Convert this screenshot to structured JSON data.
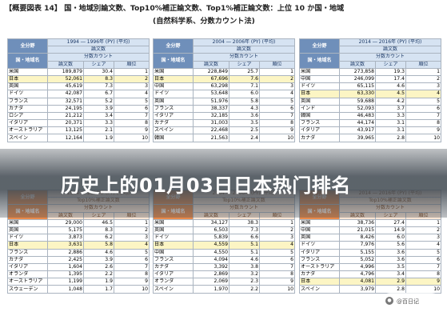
{
  "title": {
    "line1": "【概要図表 14】 国・地域別論文数、Top10%補正論文数、Top1%補正論文数：上位 10 か国・地域",
    "line2": "(自然科学系、分数カウント法)"
  },
  "banner": {
    "text": "历史上的01月03日日本热门排名"
  },
  "watermark": {
    "text": "@百日记",
    "icon": "circle-logo-icon"
  },
  "tables": [
    {
      "theme": "blue",
      "corner_top": "全分野",
      "corner_bottom": "国・地域名",
      "period": "1994 ― 1996年 (PY) (平均)",
      "metric": "論文数",
      "method": "分数カウント",
      "cols": [
        "論文数",
        "シェア",
        "順位"
      ],
      "rows": [
        {
          "name": "米国",
          "count": "189,879",
          "share": "30.4",
          "rank": "1"
        },
        {
          "name": "日本",
          "count": "52,061",
          "share": "8.3",
          "rank": "2",
          "jp": true
        },
        {
          "name": "英国",
          "count": "45,619",
          "share": "7.3",
          "rank": "3"
        },
        {
          "name": "ドイツ",
          "count": "42,087",
          "share": "6.7",
          "rank": "4"
        },
        {
          "name": "フランス",
          "count": "32,571",
          "share": "5.2",
          "rank": "5"
        },
        {
          "name": "カナダ",
          "count": "24,195",
          "share": "3.9",
          "rank": "6"
        },
        {
          "name": "ロシア",
          "count": "21,212",
          "share": "3.4",
          "rank": "7"
        },
        {
          "name": "イタリア",
          "count": "20,371",
          "share": "3.3",
          "rank": "8"
        },
        {
          "name": "オーストラリア",
          "count": "13,125",
          "share": "2.1",
          "rank": "9"
        },
        {
          "name": "スペイン",
          "count": "12,164",
          "share": "1.9",
          "rank": "10"
        }
      ]
    },
    {
      "theme": "blue",
      "corner_top": "全分野",
      "corner_bottom": "国・地域名",
      "period": "2004 ― 2006年 (PY) (平均)",
      "metric": "論文数",
      "method": "分数カウント",
      "cols": [
        "論文数",
        "シェア",
        "順位"
      ],
      "rows": [
        {
          "name": "米国",
          "count": "228,849",
          "share": "25.7",
          "rank": "1"
        },
        {
          "name": "日本",
          "count": "67,696",
          "share": "7.6",
          "rank": "2",
          "jp": true
        },
        {
          "name": "中国",
          "count": "63,298",
          "share": "7.1",
          "rank": "3"
        },
        {
          "name": "ドイツ",
          "count": "53,648",
          "share": "6.0",
          "rank": "4"
        },
        {
          "name": "英国",
          "count": "51,976",
          "share": "5.8",
          "rank": "5"
        },
        {
          "name": "フランス",
          "count": "38,337",
          "share": "4.3",
          "rank": "6"
        },
        {
          "name": "イタリア",
          "count": "32,185",
          "share": "3.6",
          "rank": "7"
        },
        {
          "name": "カナダ",
          "count": "31,003",
          "share": "3.5",
          "rank": "8"
        },
        {
          "name": "スペイン",
          "count": "22,468",
          "share": "2.5",
          "rank": "9"
        },
        {
          "name": "韓国",
          "count": "21,563",
          "share": "2.4",
          "rank": "10"
        }
      ]
    },
    {
      "theme": "blue",
      "corner_top": "全分野",
      "corner_bottom": "国・地域名",
      "period": "2014 ― 2016年 (PY) (平均)",
      "metric": "論文数",
      "method": "分数カウント",
      "cols": [
        "論文数",
        "シェア",
        "順位"
      ],
      "rows": [
        {
          "name": "米国",
          "count": "273,858",
          "share": "19.3",
          "rank": "1"
        },
        {
          "name": "中国",
          "count": "246,099",
          "share": "17.4",
          "rank": "2"
        },
        {
          "name": "ドイツ",
          "count": "65,115",
          "share": "4.6",
          "rank": "3"
        },
        {
          "name": "日本",
          "count": "63,330",
          "share": "4.5",
          "rank": "4",
          "jp": true
        },
        {
          "name": "英国",
          "count": "59,688",
          "share": "4.2",
          "rank": "5"
        },
        {
          "name": "インド",
          "count": "52,093",
          "share": "3.7",
          "rank": "6"
        },
        {
          "name": "韓国",
          "count": "46,483",
          "share": "3.3",
          "rank": "7"
        },
        {
          "name": "フランス",
          "count": "44,174",
          "share": "3.1",
          "rank": "8"
        },
        {
          "name": "イタリア",
          "count": "43,917",
          "share": "3.1",
          "rank": "9"
        },
        {
          "name": "カナダ",
          "count": "39,965",
          "share": "2.8",
          "rank": "10"
        }
      ]
    },
    {
      "theme": "orange",
      "corner_top": "全分野",
      "corner_bottom": "国・地域名",
      "period": "1994 ― 1996年 (PY) (平均)",
      "metric": "Top10%補正論文数",
      "method": "分数カウント",
      "cols": [
        "論文数",
        "シェア",
        "順位"
      ],
      "rows": [
        {
          "name": "米国",
          "count": "29,000",
          "share": "46.5",
          "rank": "1"
        },
        {
          "name": "英国",
          "count": "5,175",
          "share": "8.3",
          "rank": "2"
        },
        {
          "name": "ドイツ",
          "count": "3,873",
          "share": "6.2",
          "rank": "3"
        },
        {
          "name": "日本",
          "count": "3,631",
          "share": "5.8",
          "rank": "4",
          "jp": true
        },
        {
          "name": "フランス",
          "count": "2,886",
          "share": "4.6",
          "rank": "5"
        },
        {
          "name": "カナダ",
          "count": "2,425",
          "share": "3.9",
          "rank": "6"
        },
        {
          "name": "イタリア",
          "count": "1,604",
          "share": "2.6",
          "rank": "7"
        },
        {
          "name": "オランダ",
          "count": "1,395",
          "share": "2.2",
          "rank": "8"
        },
        {
          "name": "オーストラリア",
          "count": "1,199",
          "share": "1.9",
          "rank": "9"
        },
        {
          "name": "スウェーデン",
          "count": "1,048",
          "share": "1.7",
          "rank": "10"
        }
      ]
    },
    {
      "theme": "orange",
      "corner_top": "全分野",
      "corner_bottom": "国・地域名",
      "period": "2004 ― 2006年 (PY) (平均)",
      "metric": "Top10%補正論文数",
      "method": "分数カウント",
      "cols": [
        "論文数",
        "シェア",
        "順位"
      ],
      "rows": [
        {
          "name": "米国",
          "count": "34,127",
          "share": "38.3",
          "rank": "1"
        },
        {
          "name": "英国",
          "count": "6,503",
          "share": "7.3",
          "rank": "2"
        },
        {
          "name": "ドイツ",
          "count": "5,839",
          "share": "6.6",
          "rank": "3"
        },
        {
          "name": "日本",
          "count": "4,559",
          "share": "5.1",
          "rank": "4",
          "jp": true
        },
        {
          "name": "中国",
          "count": "4,550",
          "share": "5.1",
          "rank": "5"
        },
        {
          "name": "フランス",
          "count": "4,094",
          "share": "4.6",
          "rank": "6"
        },
        {
          "name": "カナダ",
          "count": "3,392",
          "share": "3.8",
          "rank": "7"
        },
        {
          "name": "イタリア",
          "count": "2,869",
          "share": "3.2",
          "rank": "8"
        },
        {
          "name": "オランダ",
          "count": "2,069",
          "share": "2.3",
          "rank": "9"
        },
        {
          "name": "スペイン",
          "count": "1,970",
          "share": "2.2",
          "rank": "10"
        }
      ]
    },
    {
      "theme": "orange",
      "corner_top": "全分野",
      "corner_bottom": "国・地域名",
      "period": "2014 ― 2016年 (PY) (平均)",
      "metric": "Top10%補正論文数",
      "method": "分数カウント",
      "cols": [
        "論文数",
        "シェア",
        "順位"
      ],
      "rows": [
        {
          "name": "米国",
          "count": "38,736",
          "share": "27.4",
          "rank": "1"
        },
        {
          "name": "中国",
          "count": "21,015",
          "share": "14.9",
          "rank": "2"
        },
        {
          "name": "英国",
          "count": "8,426",
          "share": "6.0",
          "rank": "3"
        },
        {
          "name": "ドイツ",
          "count": "7,976",
          "share": "5.6",
          "rank": "4"
        },
        {
          "name": "イタリア",
          "count": "5,155",
          "share": "3.6",
          "rank": "5"
        },
        {
          "name": "フランス",
          "count": "5,052",
          "share": "3.6",
          "rank": "6"
        },
        {
          "name": "オーストラリア",
          "count": "4,996",
          "share": "3.5",
          "rank": "7"
        },
        {
          "name": "カナダ",
          "count": "4,796",
          "share": "3.4",
          "rank": "8"
        },
        {
          "name": "日本",
          "count": "4,081",
          "share": "2.9",
          "rank": "9",
          "jp": true
        },
        {
          "name": "スペイン",
          "count": "3,979",
          "share": "2.8",
          "rank": "10"
        }
      ]
    }
  ]
}
